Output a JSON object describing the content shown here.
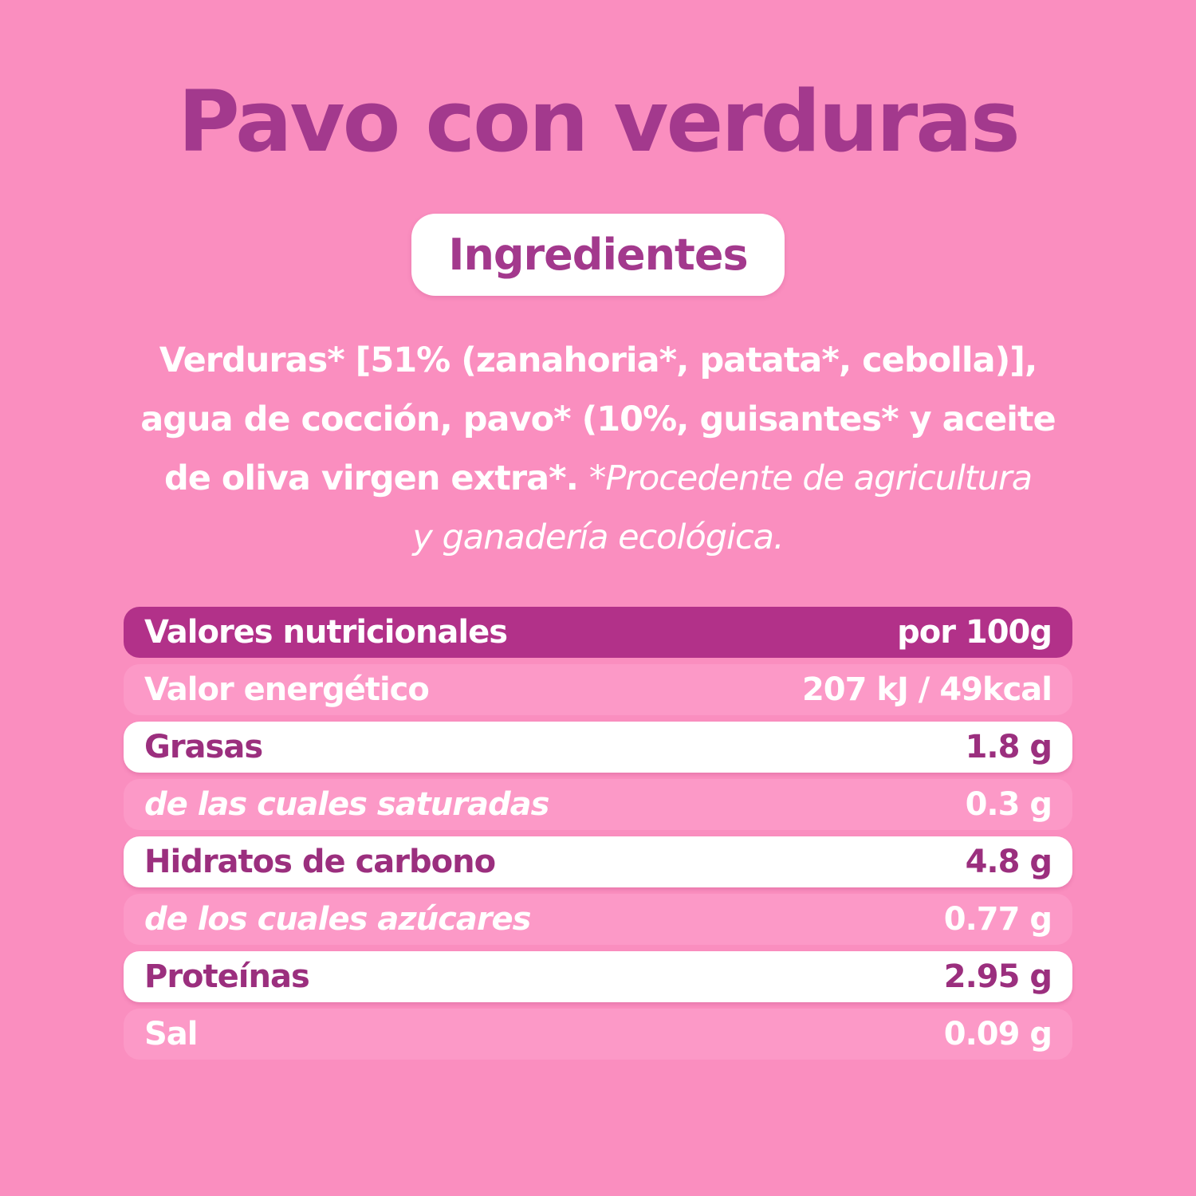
{
  "page": {
    "title": "Pavo con verduras"
  },
  "badge": {
    "label": "Ingredientes"
  },
  "ingredients": {
    "lines": [
      {
        "bold": "Verduras* [51% (zanahoria*, patata*, cebolla)],",
        "italic": ""
      },
      {
        "bold": "agua de cocción, pavo* (10%, guisantes* y aceite",
        "italic": ""
      },
      {
        "bold": "de oliva virgen extra*. ",
        "italic": "*Procedente de agricultura"
      },
      {
        "bold": "",
        "italic": "y ganadería ecológica."
      }
    ]
  },
  "nutrition_table": {
    "header": {
      "label": "Valores nutricionales",
      "unit": "por 100g"
    },
    "rows": [
      {
        "label": "Valor energético",
        "value": "207 kJ / 49kcal"
      },
      {
        "label": "Grasas",
        "value": "1.8 g"
      },
      {
        "label": "de las cuales saturadas",
        "value": "0.3 g"
      },
      {
        "label": "Hidratos de carbono",
        "value": "4.8 g"
      },
      {
        "label": "de los cuales azúcares",
        "value": "0.77 g"
      },
      {
        "label": "Proteínas",
        "value": "2.95 g"
      },
      {
        "label": "Sal",
        "value": "0.09 g"
      }
    ]
  },
  "colors": {
    "background": "#FA8EBF",
    "row_band_pink": "#FC99C7",
    "header_bar": "#B23189",
    "title_purple": "#A3398D",
    "table_text_purple": "#9B2F7E",
    "white": "#FFFFFF"
  }
}
